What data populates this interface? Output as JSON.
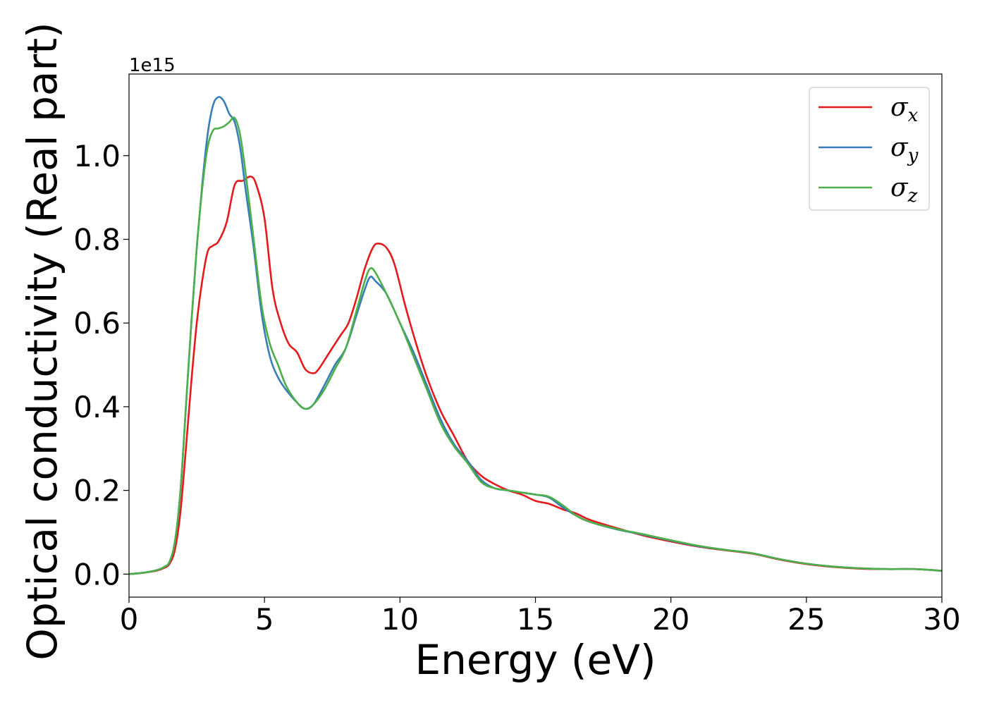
{
  "chart_data": {
    "type": "line",
    "title": "",
    "xlabel": "Energy (eV)",
    "ylabel": "Optical conductivity (Real part)",
    "y_offset_text": "1e15",
    "y_scale_factor": 1000000000000000.0,
    "xlim": [
      0,
      30
    ],
    "ylim": [
      -0.055,
      1.195
    ],
    "xticks": [
      0,
      5,
      10,
      15,
      20,
      25,
      30
    ],
    "xtick_labels": [
      "0",
      "5",
      "10",
      "15",
      "20",
      "25",
      "30"
    ],
    "yticks": [
      0.0,
      0.2,
      0.4,
      0.6,
      0.8,
      1.0
    ],
    "ytick_labels": [
      "0.0",
      "0.2",
      "0.4",
      "0.6",
      "0.8",
      "1.0"
    ],
    "grid": false,
    "legend_position": "top-right",
    "series": [
      {
        "name": "σx",
        "symbol": "σ",
        "subscript": "x",
        "color": "#e41a1c",
        "x": [
          0,
          0.5,
          1.0,
          1.3,
          1.5,
          1.7,
          1.9,
          2.1,
          2.3,
          2.5,
          2.7,
          2.9,
          3.1,
          3.3,
          3.6,
          3.9,
          4.2,
          4.5,
          4.7,
          5.0,
          5.3,
          5.6,
          5.9,
          6.2,
          6.5,
          6.8,
          7.0,
          7.4,
          7.8,
          8.1,
          8.4,
          8.7,
          9.0,
          9.2,
          9.5,
          9.8,
          10.2,
          10.6,
          11.0,
          11.5,
          12.0,
          12.5,
          13.0,
          13.5,
          14.0,
          14.5,
          15.0,
          15.5,
          16.0,
          16.5,
          17.0,
          18.0,
          19.0,
          20.0,
          21.0,
          22.0,
          23.0,
          24.0,
          25.0,
          26.0,
          27.0,
          28.0,
          29.0,
          30.0
        ],
        "values": [
          0,
          0.003,
          0.008,
          0.015,
          0.025,
          0.06,
          0.15,
          0.3,
          0.46,
          0.6,
          0.7,
          0.77,
          0.785,
          0.795,
          0.84,
          0.93,
          0.94,
          0.95,
          0.93,
          0.85,
          0.68,
          0.6,
          0.55,
          0.53,
          0.49,
          0.48,
          0.49,
          0.53,
          0.57,
          0.6,
          0.66,
          0.73,
          0.78,
          0.79,
          0.78,
          0.74,
          0.64,
          0.55,
          0.47,
          0.39,
          0.33,
          0.27,
          0.235,
          0.215,
          0.2,
          0.19,
          0.175,
          0.168,
          0.155,
          0.145,
          0.13,
          0.11,
          0.092,
          0.078,
          0.066,
          0.057,
          0.049,
          0.035,
          0.024,
          0.017,
          0.013,
          0.012,
          0.012,
          0.008
        ]
      },
      {
        "name": "σy",
        "symbol": "σ",
        "subscript": "y",
        "color": "#377eb8",
        "x": [
          0,
          0.5,
          1.0,
          1.3,
          1.5,
          1.7,
          1.9,
          2.1,
          2.3,
          2.5,
          2.7,
          2.9,
          3.1,
          3.3,
          3.5,
          3.7,
          3.9,
          4.1,
          4.3,
          4.6,
          4.9,
          5.2,
          5.5,
          5.8,
          6.2,
          6.5,
          6.8,
          7.2,
          7.6,
          8.0,
          8.4,
          8.7,
          8.9,
          9.1,
          9.5,
          10.0,
          10.5,
          11.0,
          11.5,
          12.0,
          12.5,
          13.0,
          13.5,
          14.0,
          14.5,
          15.0,
          15.5,
          16.0,
          16.5,
          17.0,
          18.0,
          19.0,
          20.0,
          21.0,
          22.0,
          23.0,
          24.0,
          25.0,
          26.0,
          27.0,
          28.0,
          29.0,
          30.0
        ],
        "values": [
          0,
          0.003,
          0.009,
          0.017,
          0.03,
          0.08,
          0.2,
          0.4,
          0.6,
          0.78,
          0.93,
          1.05,
          1.12,
          1.14,
          1.13,
          1.1,
          1.08,
          1.02,
          0.92,
          0.78,
          0.62,
          0.52,
          0.47,
          0.44,
          0.41,
          0.395,
          0.405,
          0.45,
          0.5,
          0.54,
          0.62,
          0.68,
          0.71,
          0.7,
          0.67,
          0.6,
          0.53,
          0.45,
          0.37,
          0.31,
          0.27,
          0.225,
          0.205,
          0.2,
          0.195,
          0.19,
          0.183,
          0.16,
          0.14,
          0.125,
          0.107,
          0.094,
          0.08,
          0.067,
          0.058,
          0.05,
          0.036,
          0.025,
          0.018,
          0.014,
          0.012,
          0.012,
          0.008
        ]
      },
      {
        "name": "σz",
        "symbol": "σ",
        "subscript": "z",
        "color": "#4daf4a",
        "x": [
          0,
          0.5,
          1.0,
          1.3,
          1.5,
          1.7,
          1.9,
          2.1,
          2.3,
          2.5,
          2.7,
          2.9,
          3.1,
          3.3,
          3.5,
          3.7,
          3.9,
          4.1,
          4.3,
          4.6,
          4.9,
          5.2,
          5.5,
          5.8,
          6.2,
          6.5,
          6.8,
          7.2,
          7.6,
          8.0,
          8.4,
          8.7,
          8.9,
          9.1,
          9.5,
          10.0,
          10.5,
          11.0,
          11.5,
          12.0,
          12.5,
          13.0,
          13.5,
          14.0,
          14.5,
          15.0,
          15.5,
          16.0,
          16.5,
          17.0,
          18.0,
          19.0,
          20.0,
          21.0,
          22.0,
          23.0,
          24.0,
          25.0,
          26.0,
          27.0,
          28.0,
          29.0,
          30.0
        ],
        "values": [
          0,
          0.003,
          0.009,
          0.017,
          0.03,
          0.08,
          0.2,
          0.4,
          0.6,
          0.78,
          0.92,
          1.02,
          1.06,
          1.065,
          1.07,
          1.08,
          1.09,
          1.05,
          0.96,
          0.8,
          0.64,
          0.55,
          0.5,
          0.45,
          0.41,
          0.395,
          0.405,
          0.44,
          0.49,
          0.54,
          0.63,
          0.7,
          0.73,
          0.72,
          0.67,
          0.6,
          0.52,
          0.44,
          0.36,
          0.305,
          0.265,
          0.22,
          0.205,
          0.2,
          0.195,
          0.19,
          0.185,
          0.165,
          0.14,
          0.125,
          0.108,
          0.095,
          0.081,
          0.068,
          0.058,
          0.05,
          0.036,
          0.025,
          0.018,
          0.014,
          0.012,
          0.012,
          0.008
        ]
      }
    ]
  }
}
